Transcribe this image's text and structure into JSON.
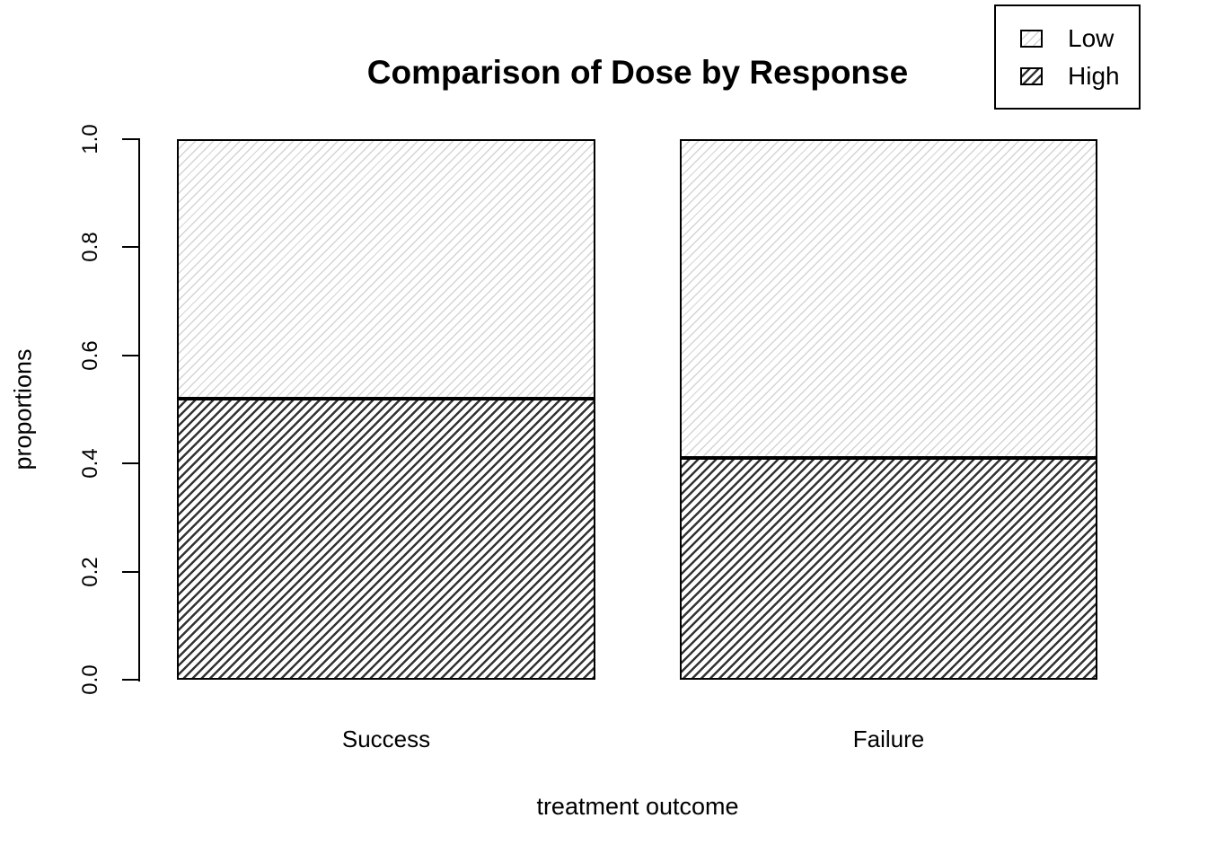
{
  "chart_data": {
    "type": "bar",
    "stacked": true,
    "title": "Comparison of Dose by Response",
    "xlabel": "treatment outcome",
    "ylabel": "proportions",
    "categories": [
      "Success",
      "Failure"
    ],
    "series": [
      {
        "name": "Low",
        "values": [
          0.48,
          0.59
        ]
      },
      {
        "name": "High",
        "values": [
          0.52,
          0.41
        ]
      }
    ],
    "stack_order_bottom_to_top": [
      "High",
      "Low"
    ],
    "ylim": [
      0,
      1
    ],
    "ytick_labels": [
      "0.0",
      "0.2",
      "0.4",
      "0.6",
      "0.8",
      "1.0"
    ],
    "grid": false,
    "legend": {
      "position": "top-right",
      "items": [
        {
          "label": "Low",
          "swatch": "light-diagonal-hatch"
        },
        {
          "label": "High",
          "swatch": "dark-diagonal-hatch"
        }
      ]
    },
    "colors": {
      "background": "#ffffff",
      "bar_border": "#000000",
      "low_hatch_line": "#d4d4d4",
      "high_hatch_line": "#333333",
      "text": "#000000"
    }
  }
}
